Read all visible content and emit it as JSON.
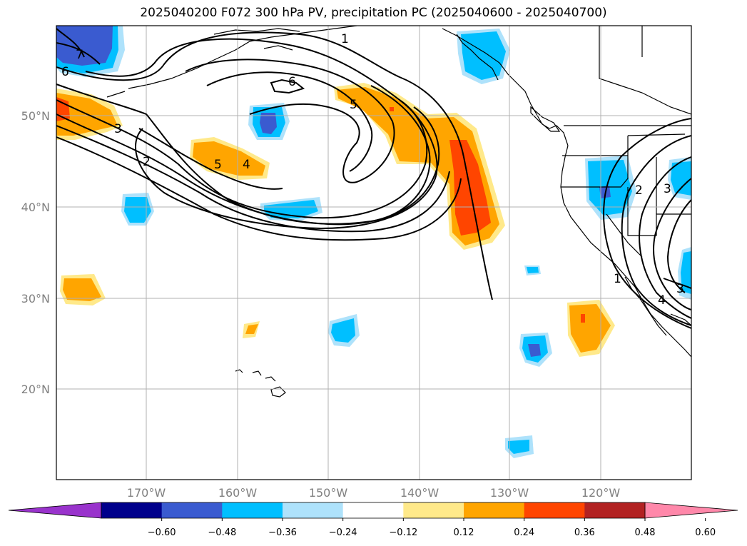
{
  "title": "2025040200 F072 300 hPa PV, precipitation PC (2025040600 - 2025040700)",
  "map": {
    "lat_ticks": [
      "50°N",
      "40°N",
      "30°N",
      "20°N"
    ],
    "lon_ticks": [
      "170°W",
      "160°W",
      "150°W",
      "140°W",
      "130°W",
      "120°W"
    ],
    "pv_contour_labels": [
      "1",
      "2",
      "3",
      "4",
      "5",
      "6",
      "7",
      "6"
    ],
    "pv_label_pairs": [
      "1",
      "2",
      "3",
      "4",
      "5",
      "4",
      "3",
      "2",
      "3",
      "1",
      "4",
      "3"
    ]
  },
  "colorbar": {
    "colors": [
      "#9933cc",
      "#00008b",
      "#3a5bd0",
      "#00bfff",
      "#aee2fb",
      "#ffffff",
      "#ffe98a",
      "#ffa500",
      "#ff4500",
      "#b22222",
      "#ff88aa"
    ],
    "tick_labels": [
      "−0.60",
      "−0.48",
      "−0.36",
      "−0.24",
      "−0.12",
      "0.12",
      "0.24",
      "0.36",
      "0.48",
      "0.60"
    ]
  }
}
